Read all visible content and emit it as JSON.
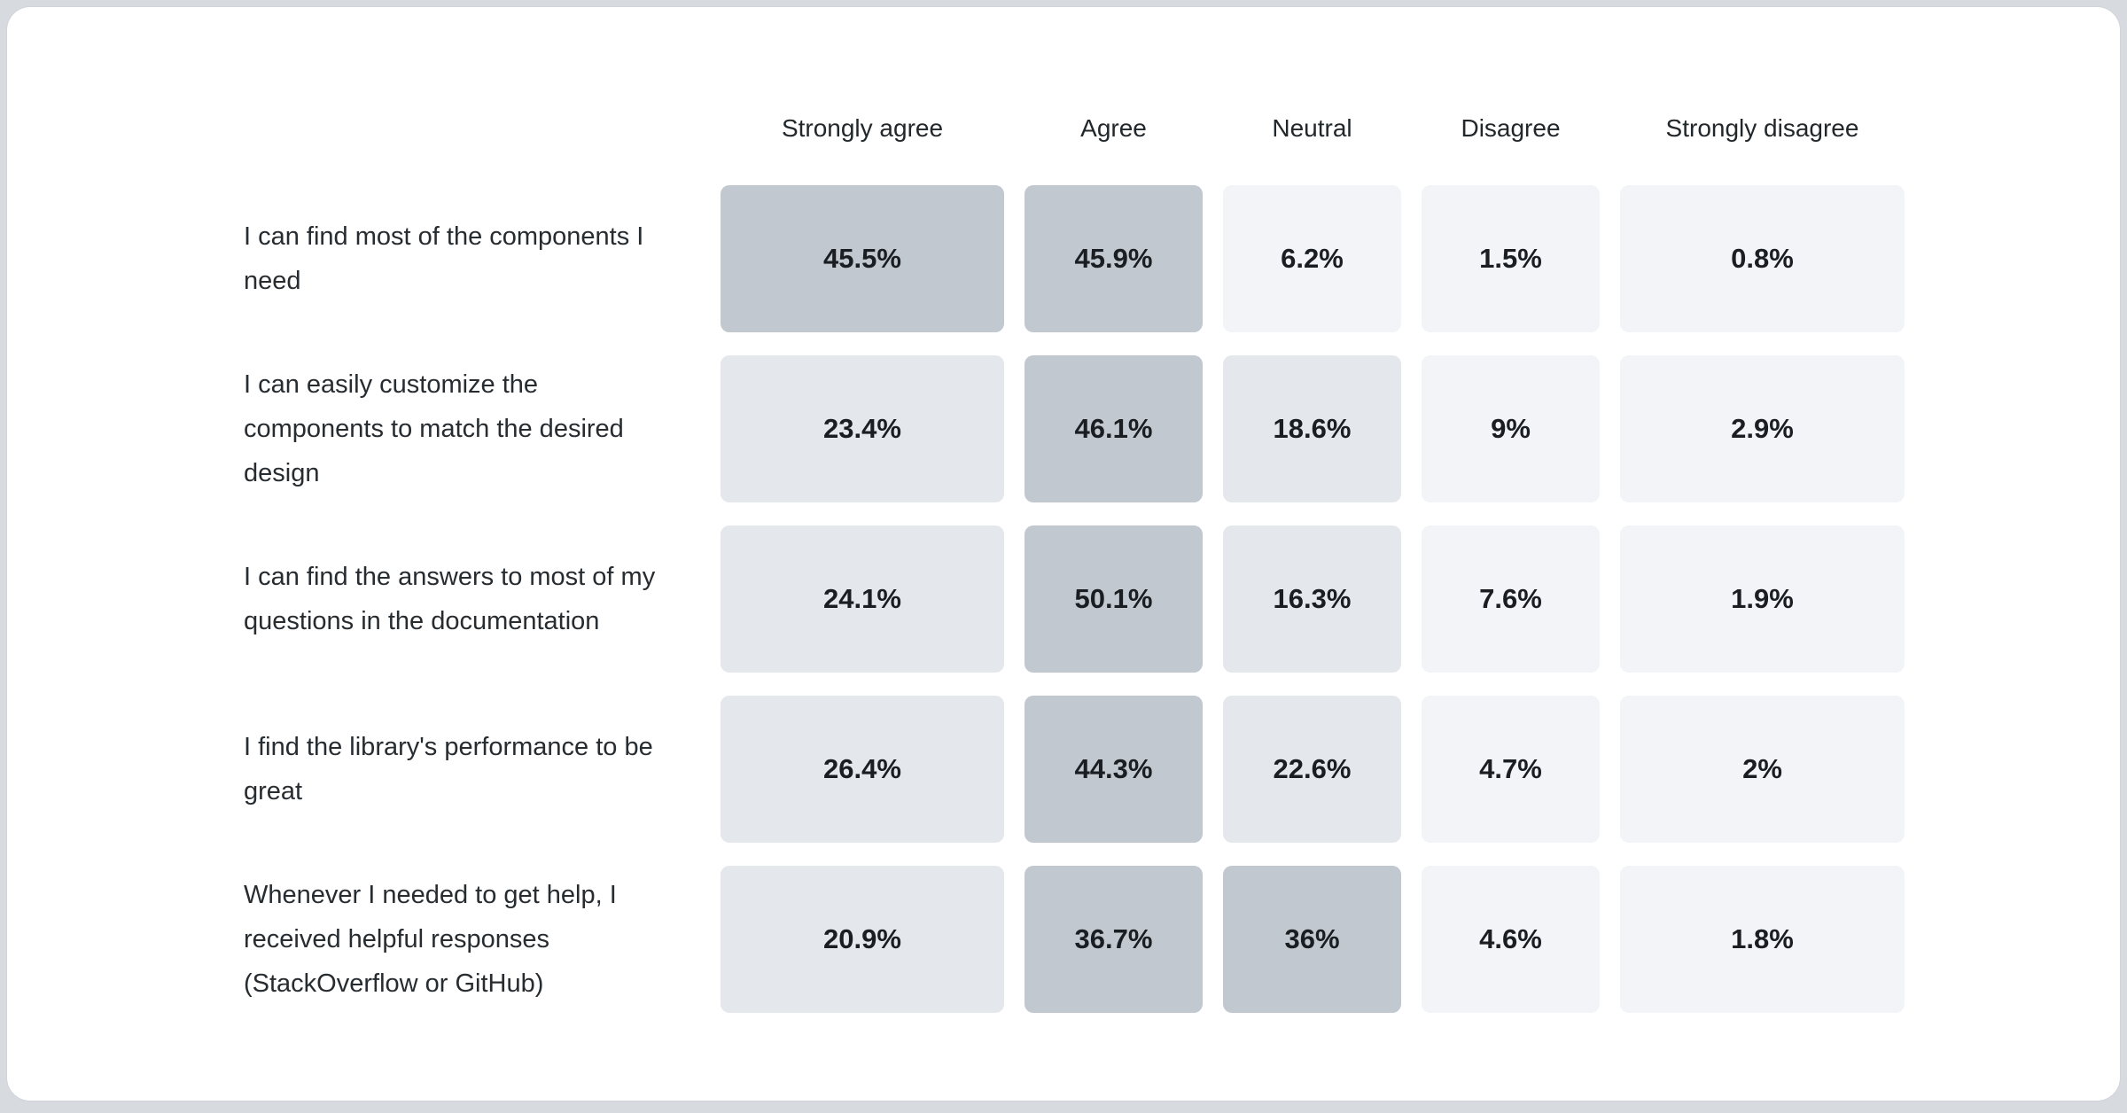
{
  "page": {
    "background_color": "#d7dbdf",
    "card_background_color": "#ffffff"
  },
  "chart_data": {
    "type": "heatmap",
    "title": "",
    "columns": [
      "Strongly agree",
      "Agree",
      "Neutral",
      "Disagree",
      "Strongly disagree"
    ],
    "rows": [
      {
        "label": "I can find most of the components I need",
        "cells": [
          {
            "value": 45.5,
            "display": "45.5%"
          },
          {
            "value": 45.9,
            "display": "45.9%"
          },
          {
            "value": 6.2,
            "display": "6.2%"
          },
          {
            "value": 1.5,
            "display": "1.5%"
          },
          {
            "value": 0.8,
            "display": "0.8%"
          }
        ]
      },
      {
        "label": "I can easily customize the components to match the desired design",
        "cells": [
          {
            "value": 23.4,
            "display": "23.4%"
          },
          {
            "value": 46.1,
            "display": "46.1%"
          },
          {
            "value": 18.6,
            "display": "18.6%"
          },
          {
            "value": 9,
            "display": "9%"
          },
          {
            "value": 2.9,
            "display": "2.9%"
          }
        ]
      },
      {
        "label": "I can find the answers to most of my questions in the documentation",
        "cells": [
          {
            "value": 24.1,
            "display": "24.1%"
          },
          {
            "value": 50.1,
            "display": "50.1%"
          },
          {
            "value": 16.3,
            "display": "16.3%"
          },
          {
            "value": 7.6,
            "display": "7.6%"
          },
          {
            "value": 1.9,
            "display": "1.9%"
          }
        ]
      },
      {
        "label": "I find the library's performance to be great",
        "cells": [
          {
            "value": 26.4,
            "display": "26.4%"
          },
          {
            "value": 44.3,
            "display": "44.3%"
          },
          {
            "value": 22.6,
            "display": "22.6%"
          },
          {
            "value": 4.7,
            "display": "4.7%"
          },
          {
            "value": 2,
            "display": "2%"
          }
        ]
      },
      {
        "label": "Whenever I needed to get help, I received helpful responses (StackOverflow or GitHub)",
        "cells": [
          {
            "value": 20.9,
            "display": "20.9%"
          },
          {
            "value": 36.7,
            "display": "36.7%"
          },
          {
            "value": 36,
            "display": "36%"
          },
          {
            "value": 4.6,
            "display": "4.6%"
          },
          {
            "value": 1.8,
            "display": "1.8%"
          }
        ]
      }
    ],
    "value_format": "percent",
    "color_scale": {
      "high_color": "#c1c8cf",
      "medium_color": "#e4e7eb",
      "low_color": "#f2f4f7",
      "high_min": 30,
      "medium_min": 15
    },
    "header_text_color": "#21272a",
    "label_text_color": "#272c31",
    "value_text_color": "#1a1e22",
    "legend_position": "none",
    "grid": false
  }
}
